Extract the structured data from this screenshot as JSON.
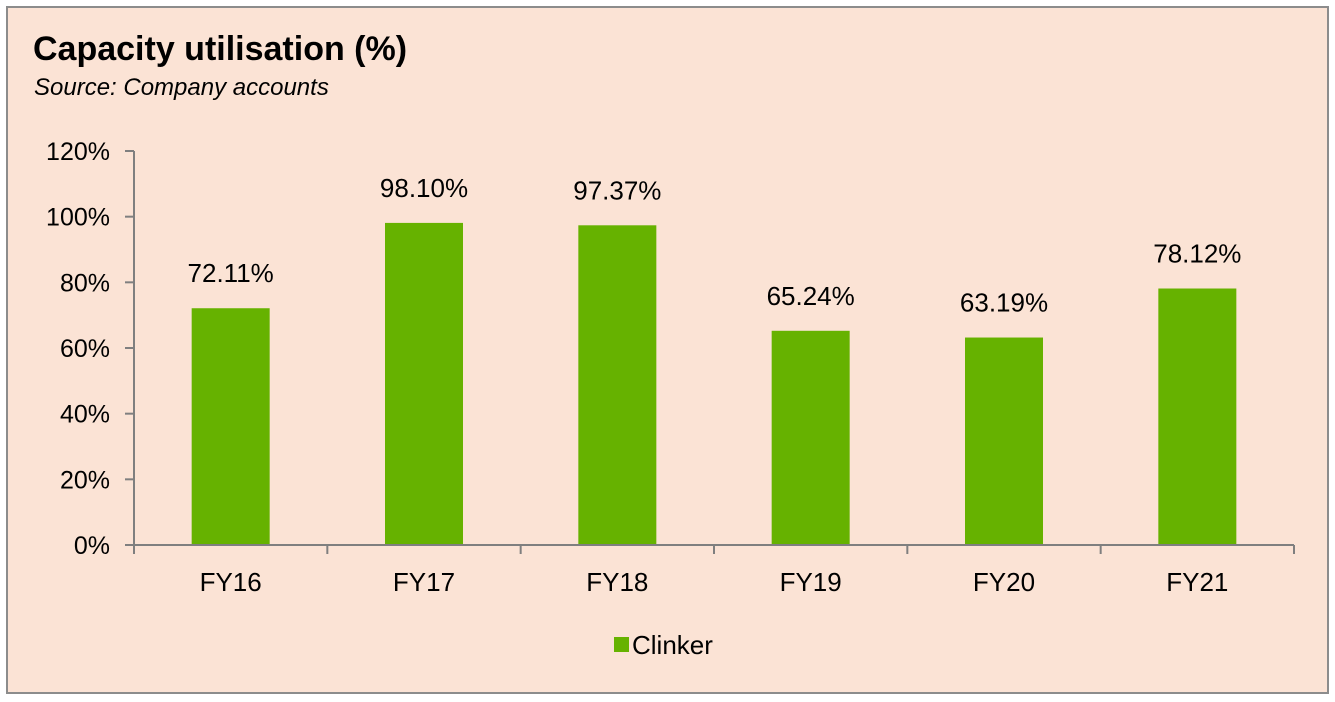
{
  "chart_data": {
    "type": "bar",
    "title": "Capacity utilisation (%)",
    "subtitle": "Source: Company accounts",
    "categories": [
      "FY16",
      "FY17",
      "FY18",
      "FY19",
      "FY20",
      "FY21"
    ],
    "series": [
      {
        "name": "Clinker",
        "values": [
          72.11,
          98.1,
          97.37,
          65.24,
          63.19,
          78.12
        ],
        "labels": [
          "72.11%",
          "98.10%",
          "97.37%",
          "65.24%",
          "63.19%",
          "78.12%"
        ],
        "color": "#66b200"
      }
    ],
    "yticks": [
      "0%",
      "20%",
      "40%",
      "60%",
      "80%",
      "100%",
      "120%"
    ],
    "ylim": [
      0,
      120
    ],
    "ystep": 20,
    "xlabel": "",
    "ylabel": "",
    "grid": false,
    "legend": "bottom-center"
  },
  "colors": {
    "background": "#fbe3d5",
    "border": "#8c8c8c",
    "bar": "#66b200",
    "axis": "#7f7f7f"
  }
}
